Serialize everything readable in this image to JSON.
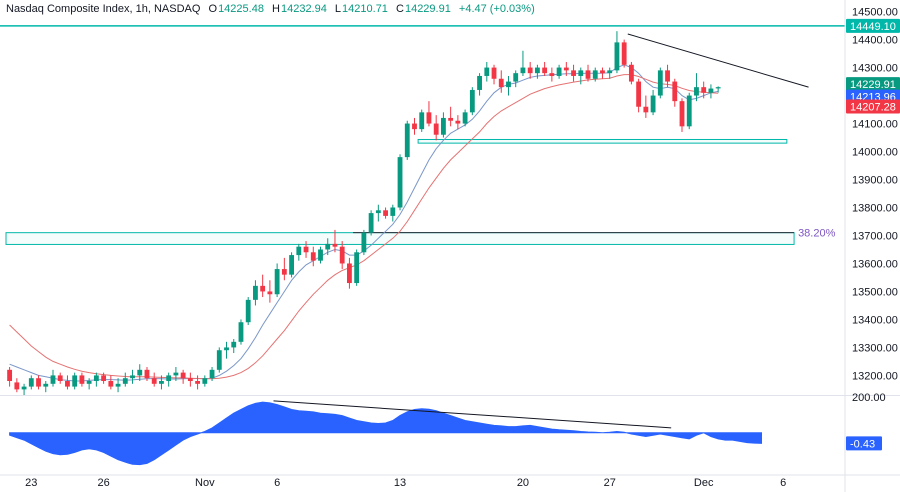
{
  "header": {
    "title": "Nasdaq Composite Index, 1h, NASDAQ",
    "open_label": "O",
    "open": "14225.48",
    "high_label": "H",
    "high": "14232.94",
    "low_label": "L",
    "low": "14210.71",
    "close_label": "C",
    "close": "14229.91",
    "change": "+4.47 (+0.03%)"
  },
  "colors": {
    "up": "#089981",
    "down": "#f23645",
    "ma_fast": "#7b97c9",
    "ma_slow": "#e57373",
    "oscillator": "#2962ff",
    "level": "#00b8a9",
    "last_price": "#089981",
    "ma_fast_badge": "#2962ff",
    "ma_slow_badge": "#f23645",
    "level_badge": "#00b8a9"
  },
  "chart_data": {
    "type": "candlestick",
    "price_axis": {
      "ylim": [
        13130,
        14520
      ],
      "ticks": [
        "14500.00",
        "14400.00",
        "14300.00",
        "14200.00",
        "14100.00",
        "14000.00",
        "13900.00",
        "13800.00",
        "13700.00",
        "13600.00",
        "13500.00",
        "13400.00",
        "13300.00",
        "13200.00"
      ]
    },
    "x_axis": {
      "tick_labels": [
        {
          "label": "23",
          "bar": 3
        },
        {
          "label": "26",
          "bar": 13
        },
        {
          "label": "Nov",
          "bar": 27
        },
        {
          "label": "6",
          "bar": 37
        },
        {
          "label": "13",
          "bar": 54
        },
        {
          "label": "20",
          "bar": 71
        },
        {
          "label": "27",
          "bar": 83
        },
        {
          "label": "Dec",
          "bar": 96
        },
        {
          "label": "6",
          "bar": 107
        }
      ]
    },
    "candles": [
      [
        13220,
        13230,
        13160,
        13180
      ],
      [
        13175,
        13190,
        13140,
        13150
      ],
      [
        13150,
        13170,
        13130,
        13160
      ],
      [
        13160,
        13200,
        13150,
        13190
      ],
      [
        13190,
        13200,
        13150,
        13160
      ],
      [
        13160,
        13180,
        13140,
        13170
      ],
      [
        13170,
        13220,
        13160,
        13200
      ],
      [
        13200,
        13210,
        13170,
        13180
      ],
      [
        13180,
        13200,
        13150,
        13160
      ],
      [
        13160,
        13210,
        13150,
        13200
      ],
      [
        13200,
        13210,
        13160,
        13170
      ],
      [
        13170,
        13190,
        13150,
        13180
      ],
      [
        13180,
        13210,
        13160,
        13200
      ],
      [
        13200,
        13210,
        13170,
        13180
      ],
      [
        13180,
        13200,
        13150,
        13160
      ],
      [
        13160,
        13190,
        13140,
        13170
      ],
      [
        13170,
        13210,
        13160,
        13190
      ],
      [
        13190,
        13220,
        13170,
        13200
      ],
      [
        13200,
        13240,
        13180,
        13220
      ],
      [
        13220,
        13230,
        13180,
        13190
      ],
      [
        13190,
        13210,
        13160,
        13170
      ],
      [
        13170,
        13200,
        13150,
        13180
      ],
      [
        13180,
        13210,
        13160,
        13200
      ],
      [
        13200,
        13230,
        13180,
        13210
      ],
      [
        13210,
        13220,
        13170,
        13190
      ],
      [
        13190,
        13210,
        13160,
        13180
      ],
      [
        13180,
        13200,
        13150,
        13170
      ],
      [
        13170,
        13200,
        13160,
        13190
      ],
      [
        13190,
        13230,
        13180,
        13220
      ],
      [
        13220,
        13300,
        13210,
        13290
      ],
      [
        13290,
        13320,
        13260,
        13300
      ],
      [
        13300,
        13330,
        13280,
        13320
      ],
      [
        13320,
        13400,
        13310,
        13390
      ],
      [
        13390,
        13480,
        13380,
        13470
      ],
      [
        13470,
        13540,
        13450,
        13520
      ],
      [
        13520,
        13560,
        13480,
        13500
      ],
      [
        13500,
        13540,
        13460,
        13490
      ],
      [
        13490,
        13600,
        13480,
        13580
      ],
      [
        13580,
        13620,
        13540,
        13560
      ],
      [
        13560,
        13640,
        13550,
        13630
      ],
      [
        13630,
        13670,
        13610,
        13660
      ],
      [
        13660,
        13680,
        13620,
        13640
      ],
      [
        13640,
        13660,
        13590,
        13610
      ],
      [
        13610,
        13660,
        13600,
        13650
      ],
      [
        13650,
        13690,
        13630,
        13670
      ],
      [
        13670,
        13720,
        13640,
        13660
      ],
      [
        13660,
        13680,
        13580,
        13600
      ],
      [
        13600,
        13620,
        13510,
        13530
      ],
      [
        13530,
        13650,
        13520,
        13640
      ],
      [
        13640,
        13720,
        13630,
        13710
      ],
      [
        13710,
        13790,
        13700,
        13780
      ],
      [
        13780,
        13810,
        13750,
        13790
      ],
      [
        13790,
        13800,
        13760,
        13770
      ],
      [
        13770,
        13810,
        13750,
        13800
      ],
      [
        13800,
        13990,
        13790,
        13980
      ],
      [
        13980,
        14110,
        13970,
        14100
      ],
      [
        14100,
        14120,
        14060,
        14080
      ],
      [
        14080,
        14150,
        14070,
        14140
      ],
      [
        14140,
        14180,
        14090,
        14100
      ],
      [
        14100,
        14130,
        14040,
        14060
      ],
      [
        14060,
        14140,
        14050,
        14120
      ],
      [
        14120,
        14160,
        14090,
        14110
      ],
      [
        14110,
        14130,
        14080,
        14100
      ],
      [
        14100,
        14150,
        14090,
        14140
      ],
      [
        14140,
        14230,
        14130,
        14220
      ],
      [
        14220,
        14280,
        14200,
        14270
      ],
      [
        14270,
        14320,
        14250,
        14300
      ],
      [
        14300,
        14310,
        14240,
        14260
      ],
      [
        14260,
        14290,
        14210,
        14230
      ],
      [
        14230,
        14270,
        14200,
        14250
      ],
      [
        14250,
        14290,
        14230,
        14280
      ],
      [
        14280,
        14360,
        14270,
        14300
      ],
      [
        14300,
        14320,
        14260,
        14280
      ],
      [
        14280,
        14310,
        14260,
        14300
      ],
      [
        14300,
        14320,
        14270,
        14280
      ],
      [
        14280,
        14300,
        14250,
        14270
      ],
      [
        14270,
        14310,
        14260,
        14300
      ],
      [
        14300,
        14320,
        14270,
        14290
      ],
      [
        14290,
        14310,
        14250,
        14270
      ],
      [
        14270,
        14300,
        14240,
        14290
      ],
      [
        14290,
        14310,
        14250,
        14260
      ],
      [
        14260,
        14300,
        14250,
        14290
      ],
      [
        14290,
        14300,
        14260,
        14280
      ],
      [
        14280,
        14300,
        14260,
        14290
      ],
      [
        14290,
        14430,
        14280,
        14390
      ],
      [
        14390,
        14400,
        14300,
        14310
      ],
      [
        14310,
        14320,
        14240,
        14250
      ],
      [
        14250,
        14260,
        14140,
        14160
      ],
      [
        14160,
        14200,
        14120,
        14140
      ],
      [
        14140,
        14220,
        14130,
        14200
      ],
      [
        14200,
        14300,
        14190,
        14290
      ],
      [
        14290,
        14310,
        14230,
        14250
      ],
      [
        14250,
        14260,
        14160,
        14180
      ],
      [
        14180,
        14190,
        14070,
        14090
      ],
      [
        14090,
        14210,
        14080,
        14200
      ],
      [
        14200,
        14280,
        14180,
        14230
      ],
      [
        14230,
        14250,
        14190,
        14210
      ],
      [
        14210,
        14240,
        14190,
        14225
      ],
      [
        14225.48,
        14232.94,
        14210.71,
        14229.91
      ]
    ],
    "moving_averages": [
      {
        "values": [
          13240,
          13230,
          13220,
          13210,
          13200,
          13195,
          13190,
          13185,
          13182,
          13180,
          13180,
          13182,
          13184,
          13185,
          13185,
          13184,
          13183,
          13184,
          13186,
          13188,
          13189,
          13188,
          13187,
          13187,
          13188,
          13189,
          13189,
          13188,
          13190,
          13200,
          13215,
          13235,
          13260,
          13295,
          13335,
          13380,
          13420,
          13460,
          13500,
          13540,
          13570,
          13595,
          13610,
          13625,
          13640,
          13650,
          13645,
          13630,
          13630,
          13645,
          13665,
          13690,
          13715,
          13740,
          13775,
          13820,
          13870,
          13920,
          13970,
          14010,
          14040,
          14065,
          14080,
          14095,
          14115,
          14145,
          14180,
          14210,
          14230,
          14240,
          14245,
          14255,
          14265,
          14270,
          14272,
          14274,
          14276,
          14278,
          14278,
          14279,
          14280,
          14280,
          14280,
          14282,
          14300,
          14310,
          14300,
          14280,
          14250,
          14230,
          14225,
          14230,
          14225,
          14200,
          14185,
          14190,
          14200,
          14210,
          14215
        ]
      },
      {
        "values": [
          13380,
          13355,
          13330,
          13305,
          13285,
          13265,
          13250,
          13240,
          13230,
          13222,
          13215,
          13210,
          13206,
          13203,
          13200,
          13198,
          13196,
          13195,
          13195,
          13195,
          13194,
          13193,
          13192,
          13191,
          13191,
          13190,
          13189,
          13188,
          13188,
          13190,
          13194,
          13200,
          13210,
          13225,
          13245,
          13270,
          13300,
          13330,
          13360,
          13395,
          13430,
          13460,
          13490,
          13515,
          13540,
          13560,
          13575,
          13585,
          13595,
          13610,
          13630,
          13650,
          13670,
          13690,
          13715,
          13750,
          13790,
          13830,
          13870,
          13905,
          13940,
          13970,
          13995,
          14020,
          14045,
          14070,
          14100,
          14125,
          14145,
          14160,
          14175,
          14190,
          14205,
          14215,
          14225,
          14232,
          14238,
          14243,
          14248,
          14252,
          14256,
          14258,
          14260,
          14262,
          14270,
          14275,
          14275,
          14268,
          14258,
          14248,
          14242,
          14240,
          14236,
          14226,
          14218,
          14214,
          14212,
          14210,
          14208
        ]
      }
    ],
    "price_levels": [
      {
        "value": 14449.1
      }
    ],
    "rectangles": [
      {
        "start_bar": 0,
        "end_bar": 109,
        "top": 13710,
        "bottom": 13668,
        "label": "38.20%"
      },
      {
        "start_bar": 57,
        "end_bar": 108,
        "top": 14043,
        "bottom": 14030
      }
    ],
    "trendlines": [
      {
        "from_bar": 86,
        "from_value": 14420,
        "to_bar": 111,
        "to_value": 14230
      }
    ],
    "last_values": [
      {
        "name": "last_price",
        "value": "14229.91"
      },
      {
        "name": "ma_fast",
        "value": "14213.96"
      },
      {
        "name": "ma_slow",
        "value": "14207.28"
      },
      {
        "name": "level",
        "value": "14449.10"
      }
    ],
    "oscillator": {
      "ylim": [
        -1.6,
        1.5
      ],
      "ticks": [
        "200.00"
      ],
      "last_value": "-0.43",
      "values": [
        -0.1,
        -0.2,
        -0.3,
        -0.45,
        -0.6,
        -0.75,
        -0.85,
        -0.9,
        -0.88,
        -0.8,
        -0.7,
        -0.65,
        -0.7,
        -0.8,
        -0.95,
        -1.1,
        -1.2,
        -1.28,
        -1.3,
        -1.25,
        -1.1,
        -0.9,
        -0.7,
        -0.5,
        -0.3,
        -0.15,
        -0.05,
        0.05,
        0.2,
        0.4,
        0.6,
        0.8,
        0.95,
        1.1,
        1.2,
        1.25,
        1.22,
        1.15,
        1.05,
        0.95,
        0.9,
        0.88,
        0.85,
        0.8,
        0.78,
        0.75,
        0.7,
        0.6,
        0.5,
        0.45,
        0.4,
        0.38,
        0.4,
        0.5,
        0.7,
        0.85,
        0.95,
        0.98,
        0.96,
        0.9,
        0.8,
        0.7,
        0.6,
        0.5,
        0.45,
        0.4,
        0.35,
        0.3,
        0.28,
        0.25,
        0.25,
        0.28,
        0.3,
        0.25,
        0.2,
        0.15,
        0.12,
        0.1,
        0.08,
        0.05,
        0.03,
        0.02,
        0.0,
        0.02,
        0.05,
        0.02,
        -0.05,
        -0.1,
        -0.15,
        -0.1,
        -0.05,
        -0.1,
        -0.15,
        -0.2,
        -0.25,
        -0.1,
        0.0,
        -0.15,
        -0.25,
        -0.3,
        -0.3,
        -0.35,
        -0.4,
        -0.42,
        -0.43
      ],
      "trendline": {
        "from_bar": 37,
        "from_value": 1.3,
        "to_bar": 92,
        "to_value": 0.2
      }
    },
    "xlabel": "",
    "ylabel": ""
  }
}
